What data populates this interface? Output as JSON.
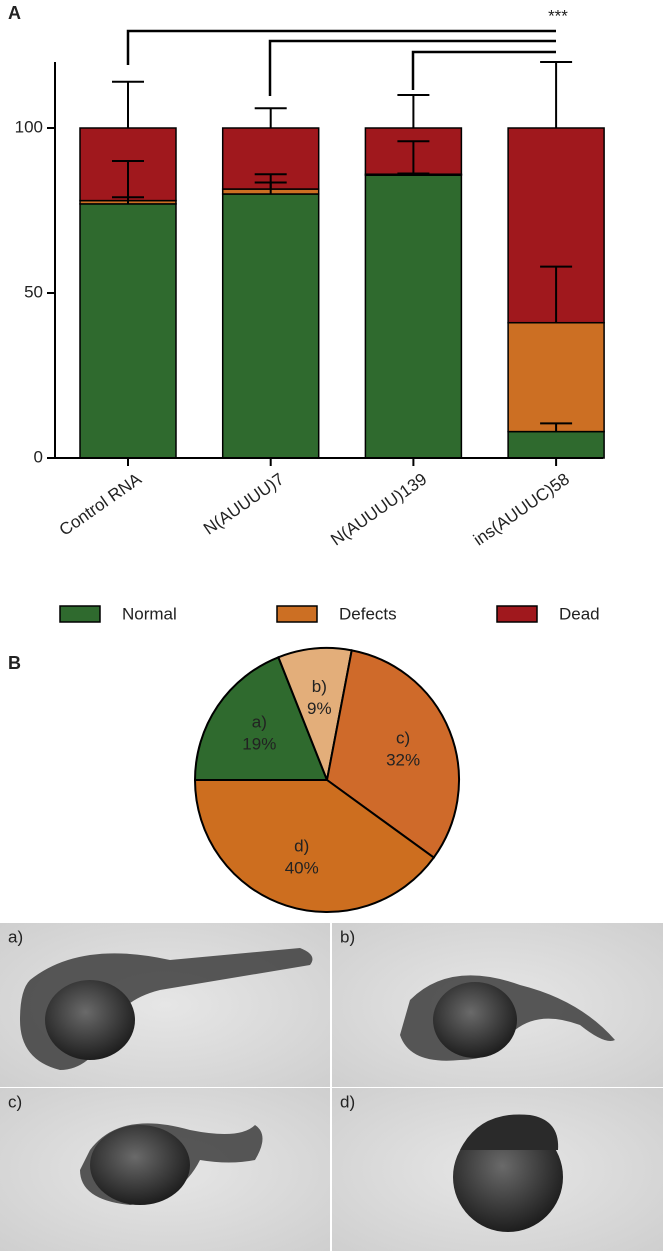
{
  "chart_data": [
    {
      "type": "bar",
      "panel": "A",
      "stacked": true,
      "categories": [
        "Control RNA",
        "N(AUUUU)7",
        "N(AUUUU)139",
        "ins(AUUUC)58"
      ],
      "series": [
        {
          "name": "Normal",
          "color": "#2f6a2e",
          "values": [
            77,
            80,
            85.7,
            8
          ],
          "errors": [
            2,
            3.5,
            0.5,
            2.5
          ]
        },
        {
          "name": "Defects",
          "color": "#cc6f23",
          "values": [
            1,
            1.5,
            0.3,
            33
          ],
          "errors": [
            12,
            4.5,
            10,
            17
          ]
        },
        {
          "name": "Dead",
          "color": "#a0181d",
          "values": [
            22,
            18.5,
            14,
            59
          ],
          "errors": [
            14,
            6,
            10,
            20
          ]
        }
      ],
      "ylim": [
        0,
        120
      ],
      "yticks": [
        0,
        50,
        100
      ],
      "annotations": [
        {
          "text": "***"
        }
      ]
    },
    {
      "type": "pie",
      "panel": "B",
      "labels": [
        "a)",
        "b)",
        "c)",
        "d)"
      ],
      "values": [
        19,
        9,
        32,
        40
      ],
      "value_labels": [
        "19%",
        "9%",
        "32%",
        "40%"
      ],
      "colors": [
        "#2f6a2e",
        "#e3ae7a",
        "#cf6a2a",
        "#cd6e1f"
      ]
    }
  ],
  "images": [
    {
      "label": "a)"
    },
    {
      "label": "b)"
    },
    {
      "label": "c)"
    },
    {
      "label": "d)"
    }
  ]
}
